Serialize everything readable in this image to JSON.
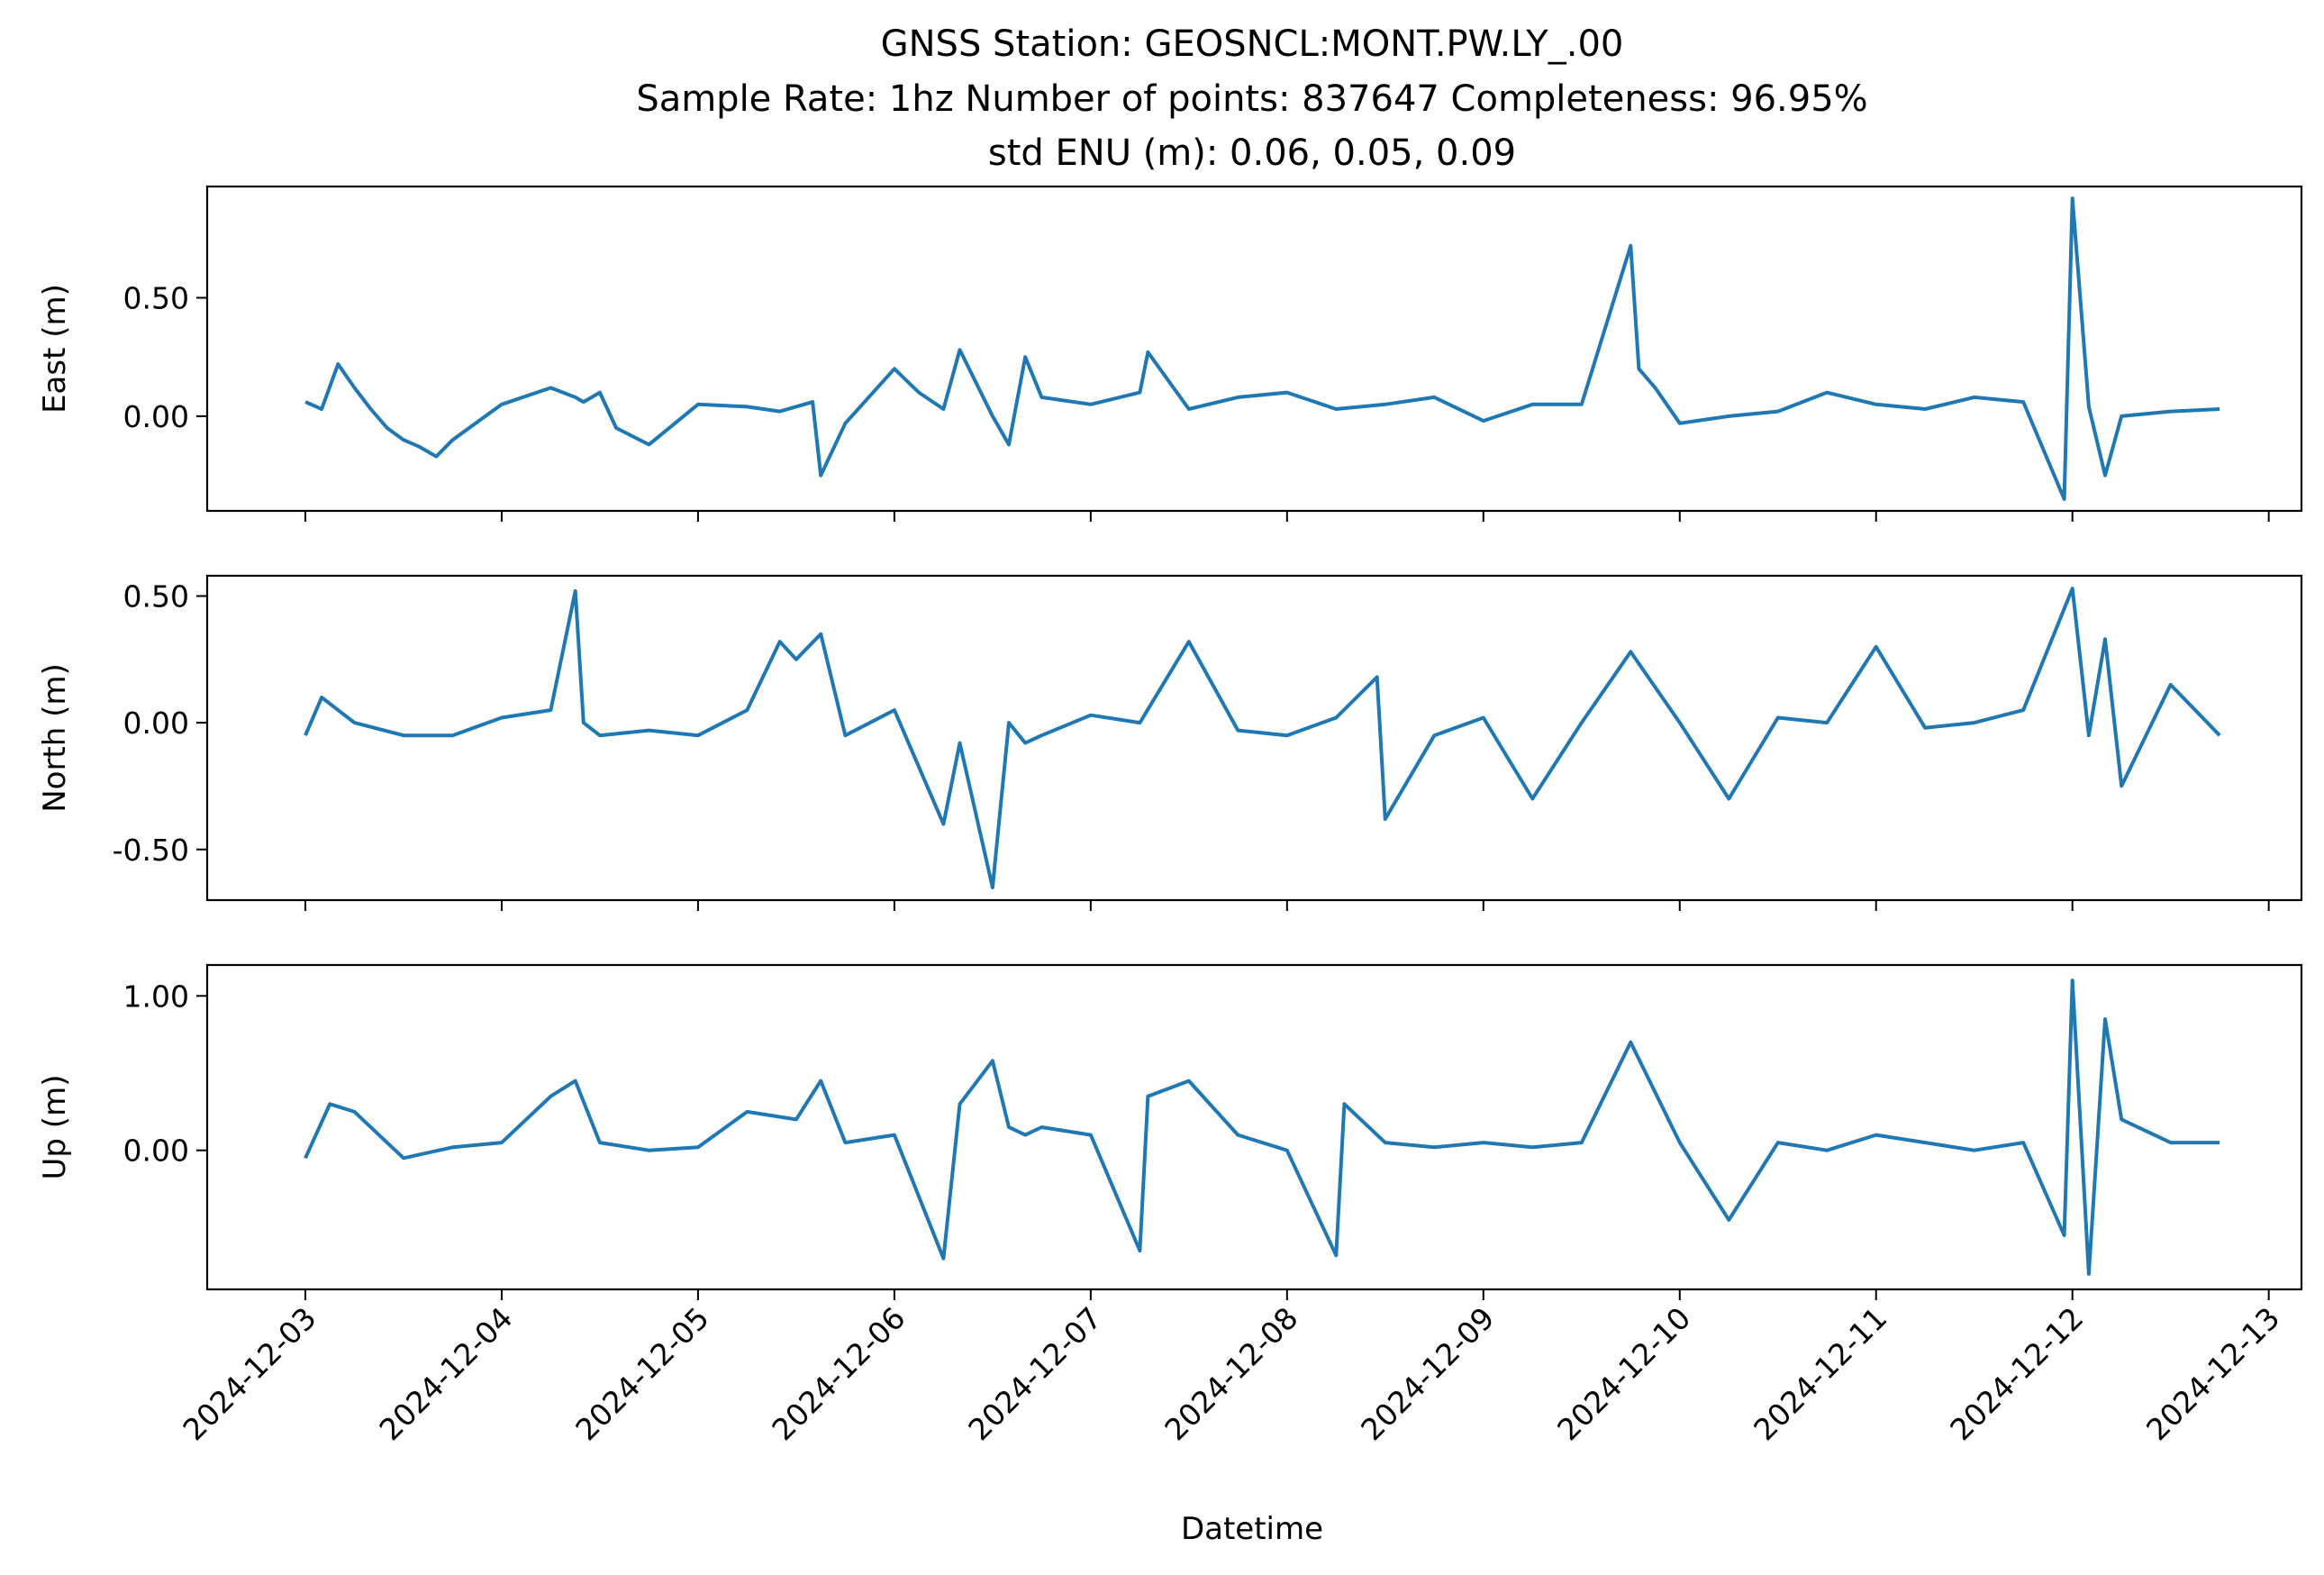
{
  "chart_data": {
    "type": "line",
    "title_lines": [
      "GNSS Station: GEOSNCL:MONT.PW.LY_.00",
      "Sample Rate: 1hz   Number of points: 837647    Completeness:  96.95%",
      "std ENU (m):  0.06, 0.05, 0.09"
    ],
    "xlabel": "Datetime",
    "x_ticks": [
      "2024-12-03",
      "2024-12-04",
      "2024-12-05",
      "2024-12-06",
      "2024-12-07",
      "2024-12-08",
      "2024-12-09",
      "2024-12-10",
      "2024-12-11",
      "2024-12-12",
      "2024-12-13"
    ],
    "x_range": [
      "2024-12-02T12:00",
      "2024-12-13T04:00"
    ],
    "line_color": "#1f77b4",
    "grid": false,
    "panels": [
      {
        "ylabel": "East (m)",
        "ylim": [
          -0.4,
          0.97
        ],
        "y_ticks": [
          {
            "v": 0.0,
            "label": "0.00"
          },
          {
            "v": 0.5,
            "label": "0.50"
          }
        ],
        "x": [
          "2024-12-03T00:00",
          "2024-12-03T02:00",
          "2024-12-03T04:00",
          "2024-12-03T06:00",
          "2024-12-03T08:00",
          "2024-12-03T10:00",
          "2024-12-03T12:00",
          "2024-12-03T14:00",
          "2024-12-03T16:00",
          "2024-12-03T18:00",
          "2024-12-04T00:00",
          "2024-12-04T06:00",
          "2024-12-04T09:00",
          "2024-12-04T10:00",
          "2024-12-04T12:00",
          "2024-12-04T14:00",
          "2024-12-04T18:00",
          "2024-12-05T00:00",
          "2024-12-05T06:00",
          "2024-12-05T10:00",
          "2024-12-05T14:00",
          "2024-12-05T15:00",
          "2024-12-05T18:00",
          "2024-12-06T00:00",
          "2024-12-06T03:00",
          "2024-12-06T06:00",
          "2024-12-06T08:00",
          "2024-12-06T12:00",
          "2024-12-06T14:00",
          "2024-12-06T16:00",
          "2024-12-06T18:00",
          "2024-12-07T00:00",
          "2024-12-07T06:00",
          "2024-12-07T07:00",
          "2024-12-07T12:00",
          "2024-12-07T18:00",
          "2024-12-08T00:00",
          "2024-12-08T06:00",
          "2024-12-08T12:00",
          "2024-12-08T18:00",
          "2024-12-09T00:00",
          "2024-12-09T06:00",
          "2024-12-09T12:00",
          "2024-12-09T18:00",
          "2024-12-09T19:00",
          "2024-12-09T21:00",
          "2024-12-10T00:00",
          "2024-12-10T06:00",
          "2024-12-10T12:00",
          "2024-12-10T18:00",
          "2024-12-11T00:00",
          "2024-12-11T06:00",
          "2024-12-11T12:00",
          "2024-12-11T18:00",
          "2024-12-11T23:00",
          "2024-12-12T00:00",
          "2024-12-12T02:00",
          "2024-12-12T04:00",
          "2024-12-12T06:00",
          "2024-12-12T12:00",
          "2024-12-12T18:00"
        ],
        "y": [
          0.06,
          0.03,
          0.22,
          0.12,
          0.03,
          -0.05,
          -0.1,
          -0.13,
          -0.17,
          -0.1,
          0.05,
          0.12,
          0.08,
          0.06,
          0.1,
          -0.05,
          -0.12,
          0.05,
          0.04,
          0.02,
          0.06,
          -0.25,
          -0.03,
          0.2,
          0.1,
          0.03,
          0.28,
          0.0,
          -0.12,
          0.25,
          0.08,
          0.05,
          0.1,
          0.27,
          0.03,
          0.08,
          0.1,
          0.03,
          0.05,
          0.08,
          -0.02,
          0.05,
          0.05,
          0.72,
          0.2,
          0.12,
          -0.03,
          0.0,
          0.02,
          0.1,
          0.05,
          0.03,
          0.08,
          0.06,
          -0.35,
          0.92,
          0.04,
          -0.25,
          0.0,
          0.02,
          0.03
        ]
      },
      {
        "ylabel": "North (m)",
        "ylim": [
          -0.7,
          0.58
        ],
        "y_ticks": [
          {
            "v": 0.5,
            "label": "0.50"
          },
          {
            "v": 0.0,
            "label": "0.00"
          },
          {
            "v": -0.5,
            "label": "-0.50"
          }
        ],
        "x": [
          "2024-12-03T00:00",
          "2024-12-03T02:00",
          "2024-12-03T06:00",
          "2024-12-03T12:00",
          "2024-12-03T18:00",
          "2024-12-04T00:00",
          "2024-12-04T06:00",
          "2024-12-04T09:00",
          "2024-12-04T10:00",
          "2024-12-04T12:00",
          "2024-12-04T18:00",
          "2024-12-05T00:00",
          "2024-12-05T06:00",
          "2024-12-05T10:00",
          "2024-12-05T12:00",
          "2024-12-05T15:00",
          "2024-12-05T18:00",
          "2024-12-06T00:00",
          "2024-12-06T06:00",
          "2024-12-06T08:00",
          "2024-12-06T12:00",
          "2024-12-06T14:00",
          "2024-12-06T16:00",
          "2024-12-06T18:00",
          "2024-12-07T00:00",
          "2024-12-07T06:00",
          "2024-12-07T12:00",
          "2024-12-07T18:00",
          "2024-12-08T00:00",
          "2024-12-08T06:00",
          "2024-12-08T11:00",
          "2024-12-08T12:00",
          "2024-12-08T18:00",
          "2024-12-09T00:00",
          "2024-12-09T06:00",
          "2024-12-09T12:00",
          "2024-12-09T18:00",
          "2024-12-10T00:00",
          "2024-12-10T06:00",
          "2024-12-10T12:00",
          "2024-12-10T18:00",
          "2024-12-11T00:00",
          "2024-12-11T06:00",
          "2024-12-11T12:00",
          "2024-12-11T18:00",
          "2024-12-12T00:00",
          "2024-12-12T02:00",
          "2024-12-12T04:00",
          "2024-12-12T06:00",
          "2024-12-12T12:00",
          "2024-12-12T18:00"
        ],
        "y": [
          -0.05,
          0.1,
          0.0,
          -0.05,
          -0.05,
          0.02,
          0.05,
          0.52,
          0.0,
          -0.05,
          -0.03,
          -0.05,
          0.05,
          0.32,
          0.25,
          0.35,
          -0.05,
          0.05,
          -0.4,
          -0.08,
          -0.65,
          0.0,
          -0.08,
          -0.05,
          0.03,
          0.0,
          0.32,
          -0.03,
          -0.05,
          0.02,
          0.18,
          -0.38,
          -0.05,
          0.02,
          -0.3,
          0.0,
          0.28,
          0.0,
          -0.3,
          0.02,
          0.0,
          0.3,
          -0.02,
          0.0,
          0.05,
          0.53,
          -0.05,
          0.33,
          -0.25,
          0.15,
          -0.05
        ]
      },
      {
        "ylabel": "Up (m)",
        "ylim": [
          -0.9,
          1.2
        ],
        "y_ticks": [
          {
            "v": 1.0,
            "label": "1.00"
          },
          {
            "v": 0.0,
            "label": "0.00"
          }
        ],
        "x": [
          "2024-12-03T00:00",
          "2024-12-03T03:00",
          "2024-12-03T06:00",
          "2024-12-03T09:00",
          "2024-12-03T12:00",
          "2024-12-03T18:00",
          "2024-12-04T00:00",
          "2024-12-04T06:00",
          "2024-12-04T09:00",
          "2024-12-04T12:00",
          "2024-12-04T18:00",
          "2024-12-05T00:00",
          "2024-12-05T06:00",
          "2024-12-05T12:00",
          "2024-12-05T15:00",
          "2024-12-05T18:00",
          "2024-12-06T00:00",
          "2024-12-06T06:00",
          "2024-12-06T08:00",
          "2024-12-06T12:00",
          "2024-12-06T14:00",
          "2024-12-06T16:00",
          "2024-12-06T18:00",
          "2024-12-07T00:00",
          "2024-12-07T06:00",
          "2024-12-07T07:00",
          "2024-12-07T12:00",
          "2024-12-07T18:00",
          "2024-12-08T00:00",
          "2024-12-08T06:00",
          "2024-12-08T07:00",
          "2024-12-08T12:00",
          "2024-12-08T18:00",
          "2024-12-09T00:00",
          "2024-12-09T06:00",
          "2024-12-09T12:00",
          "2024-12-09T18:00",
          "2024-12-10T00:00",
          "2024-12-10T06:00",
          "2024-12-10T12:00",
          "2024-12-10T18:00",
          "2024-12-11T00:00",
          "2024-12-11T06:00",
          "2024-12-11T12:00",
          "2024-12-11T18:00",
          "2024-12-11T23:00",
          "2024-12-12T00:00",
          "2024-12-12T02:00",
          "2024-12-12T04:00",
          "2024-12-12T06:00",
          "2024-12-12T12:00",
          "2024-12-12T18:00"
        ],
        "y": [
          -0.05,
          0.3,
          0.25,
          0.1,
          -0.05,
          0.02,
          0.05,
          0.35,
          0.45,
          0.05,
          0.0,
          0.02,
          0.25,
          0.2,
          0.45,
          0.05,
          0.1,
          -0.7,
          0.3,
          0.58,
          0.15,
          0.1,
          0.15,
          0.1,
          -0.65,
          0.35,
          0.45,
          0.1,
          0.0,
          -0.68,
          0.3,
          0.05,
          0.02,
          0.05,
          0.02,
          0.05,
          0.7,
          0.05,
          -0.45,
          0.05,
          0.0,
          0.1,
          0.05,
          0.0,
          0.05,
          -0.55,
          1.1,
          -0.8,
          0.85,
          0.2,
          0.05,
          0.05
        ]
      }
    ]
  }
}
